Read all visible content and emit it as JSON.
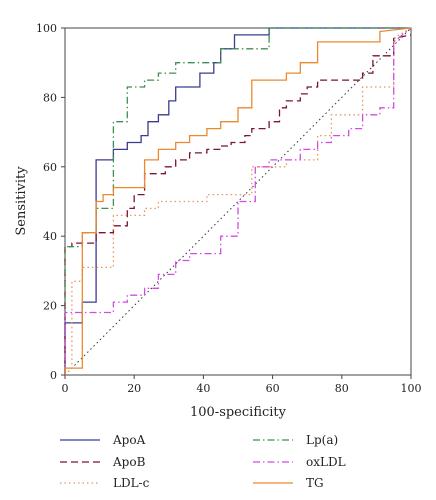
{
  "chart_data": {
    "type": "line",
    "xlabel": "100-specificity",
    "ylabel": "Sensitivity",
    "xlim": [
      0,
      100
    ],
    "ylim": [
      0,
      100
    ],
    "xticks": [
      0,
      20,
      40,
      60,
      80,
      100
    ],
    "yticks": [
      0,
      20,
      40,
      60,
      80,
      100
    ],
    "grid": false,
    "legend_position": "bottom",
    "reference_line": {
      "x": [
        0,
        100
      ],
      "y": [
        0,
        100
      ],
      "color": "#333333",
      "style": "dotted"
    },
    "series": [
      {
        "name": "ApoA",
        "color": "#3a3d8f",
        "style": "solid",
        "x": [
          0,
          0,
          5,
          5,
          9,
          9,
          14,
          14,
          18,
          18,
          22,
          22,
          24,
          24,
          27,
          27,
          30,
          30,
          32,
          32,
          39,
          39,
          43,
          43,
          45,
          45,
          49,
          49,
          53,
          53,
          59,
          59,
          64,
          64,
          91,
          91,
          100
        ],
        "y": [
          0,
          15,
          15,
          21,
          21,
          62,
          62,
          65,
          65,
          67,
          67,
          69,
          69,
          73,
          73,
          75,
          75,
          79,
          79,
          83,
          83,
          87,
          87,
          90,
          90,
          94,
          94,
          98,
          98,
          98,
          98,
          100,
          100,
          100,
          100,
          100,
          100
        ]
      },
      {
        "name": "ApoB",
        "color": "#7a1530",
        "style": "dashed",
        "x": [
          0,
          0,
          2,
          2,
          9,
          9,
          14,
          14,
          18,
          18,
          20,
          20,
          23,
          23,
          29,
          29,
          32,
          32,
          36,
          36,
          41,
          41,
          45,
          45,
          48,
          48,
          52,
          52,
          54,
          54,
          59,
          59,
          62,
          62,
          64,
          64,
          68,
          68,
          70,
          70,
          73,
          73,
          86,
          86,
          89,
          89,
          95,
          95,
          100
        ],
        "y": [
          0,
          37,
          37,
          38,
          38,
          41,
          41,
          43,
          43,
          48,
          48,
          52,
          52,
          58,
          58,
          60,
          60,
          62,
          62,
          64,
          64,
          65,
          65,
          66,
          66,
          67,
          67,
          69,
          69,
          71,
          71,
          73,
          73,
          77,
          77,
          79,
          79,
          81,
          81,
          83,
          83,
          85,
          85,
          87,
          87,
          92,
          92,
          97,
          98
        ]
      },
      {
        "name": "LDL-c",
        "color": "#e8955a",
        "style": "dotted",
        "x": [
          0,
          2,
          2,
          5,
          5,
          14,
          14,
          23,
          23,
          27,
          27,
          41,
          41,
          54,
          54,
          64,
          64,
          73,
          73,
          77,
          77,
          86,
          86,
          95,
          95,
          100
        ],
        "y": [
          0,
          2,
          27,
          27,
          31,
          31,
          46,
          46,
          48,
          48,
          50,
          50,
          52,
          52,
          60,
          60,
          62,
          62,
          69,
          69,
          75,
          75,
          83,
          83,
          97,
          100
        ]
      },
      {
        "name": "Lp(a)",
        "color": "#3f8f50",
        "style": "dashdot",
        "x": [
          0,
          0,
          5,
          5,
          9,
          9,
          14,
          14,
          18,
          18,
          23,
          23,
          27,
          27,
          32,
          32,
          39,
          39,
          45,
          45,
          50,
          50,
          59,
          59,
          100
        ],
        "y": [
          0,
          37,
          37,
          41,
          41,
          48,
          48,
          73,
          73,
          83,
          83,
          85,
          85,
          87,
          87,
          90,
          90,
          90,
          90,
          94,
          94,
          94,
          94,
          100,
          100
        ]
      },
      {
        "name": "oxLDL",
        "color": "#d04de0",
        "style": "dashdot",
        "x": [
          0,
          0,
          14,
          14,
          18,
          18,
          23,
          23,
          27,
          27,
          32,
          32,
          36,
          36,
          45,
          45,
          50,
          50,
          55,
          55,
          59,
          59,
          68,
          68,
          73,
          73,
          77,
          77,
          82,
          82,
          86,
          86,
          91,
          91,
          95,
          95,
          100
        ],
        "y": [
          0,
          18,
          18,
          21,
          21,
          23,
          23,
          25,
          25,
          29,
          29,
          33,
          33,
          35,
          35,
          40,
          40,
          50,
          50,
          60,
          60,
          62,
          62,
          65,
          65,
          67,
          67,
          69,
          69,
          71,
          71,
          75,
          75,
          77,
          77,
          96,
          100
        ]
      },
      {
        "name": "TG",
        "color": "#ea8a30",
        "style": "solid",
        "x": [
          0,
          0,
          5,
          5,
          9,
          9,
          11,
          11,
          14,
          14,
          23,
          23,
          27,
          27,
          32,
          32,
          36,
          36,
          41,
          41,
          45,
          45,
          50,
          50,
          54,
          54,
          59,
          59,
          64,
          64,
          68,
          68,
          73,
          73,
          91,
          91,
          100
        ],
        "y": [
          0,
          2,
          2,
          41,
          41,
          50,
          50,
          52,
          52,
          54,
          54,
          62,
          62,
          65,
          65,
          67,
          67,
          69,
          69,
          71,
          71,
          73,
          73,
          77,
          77,
          85,
          85,
          85,
          85,
          87,
          87,
          90,
          90,
          96,
          96,
          99,
          100
        ]
      }
    ]
  }
}
